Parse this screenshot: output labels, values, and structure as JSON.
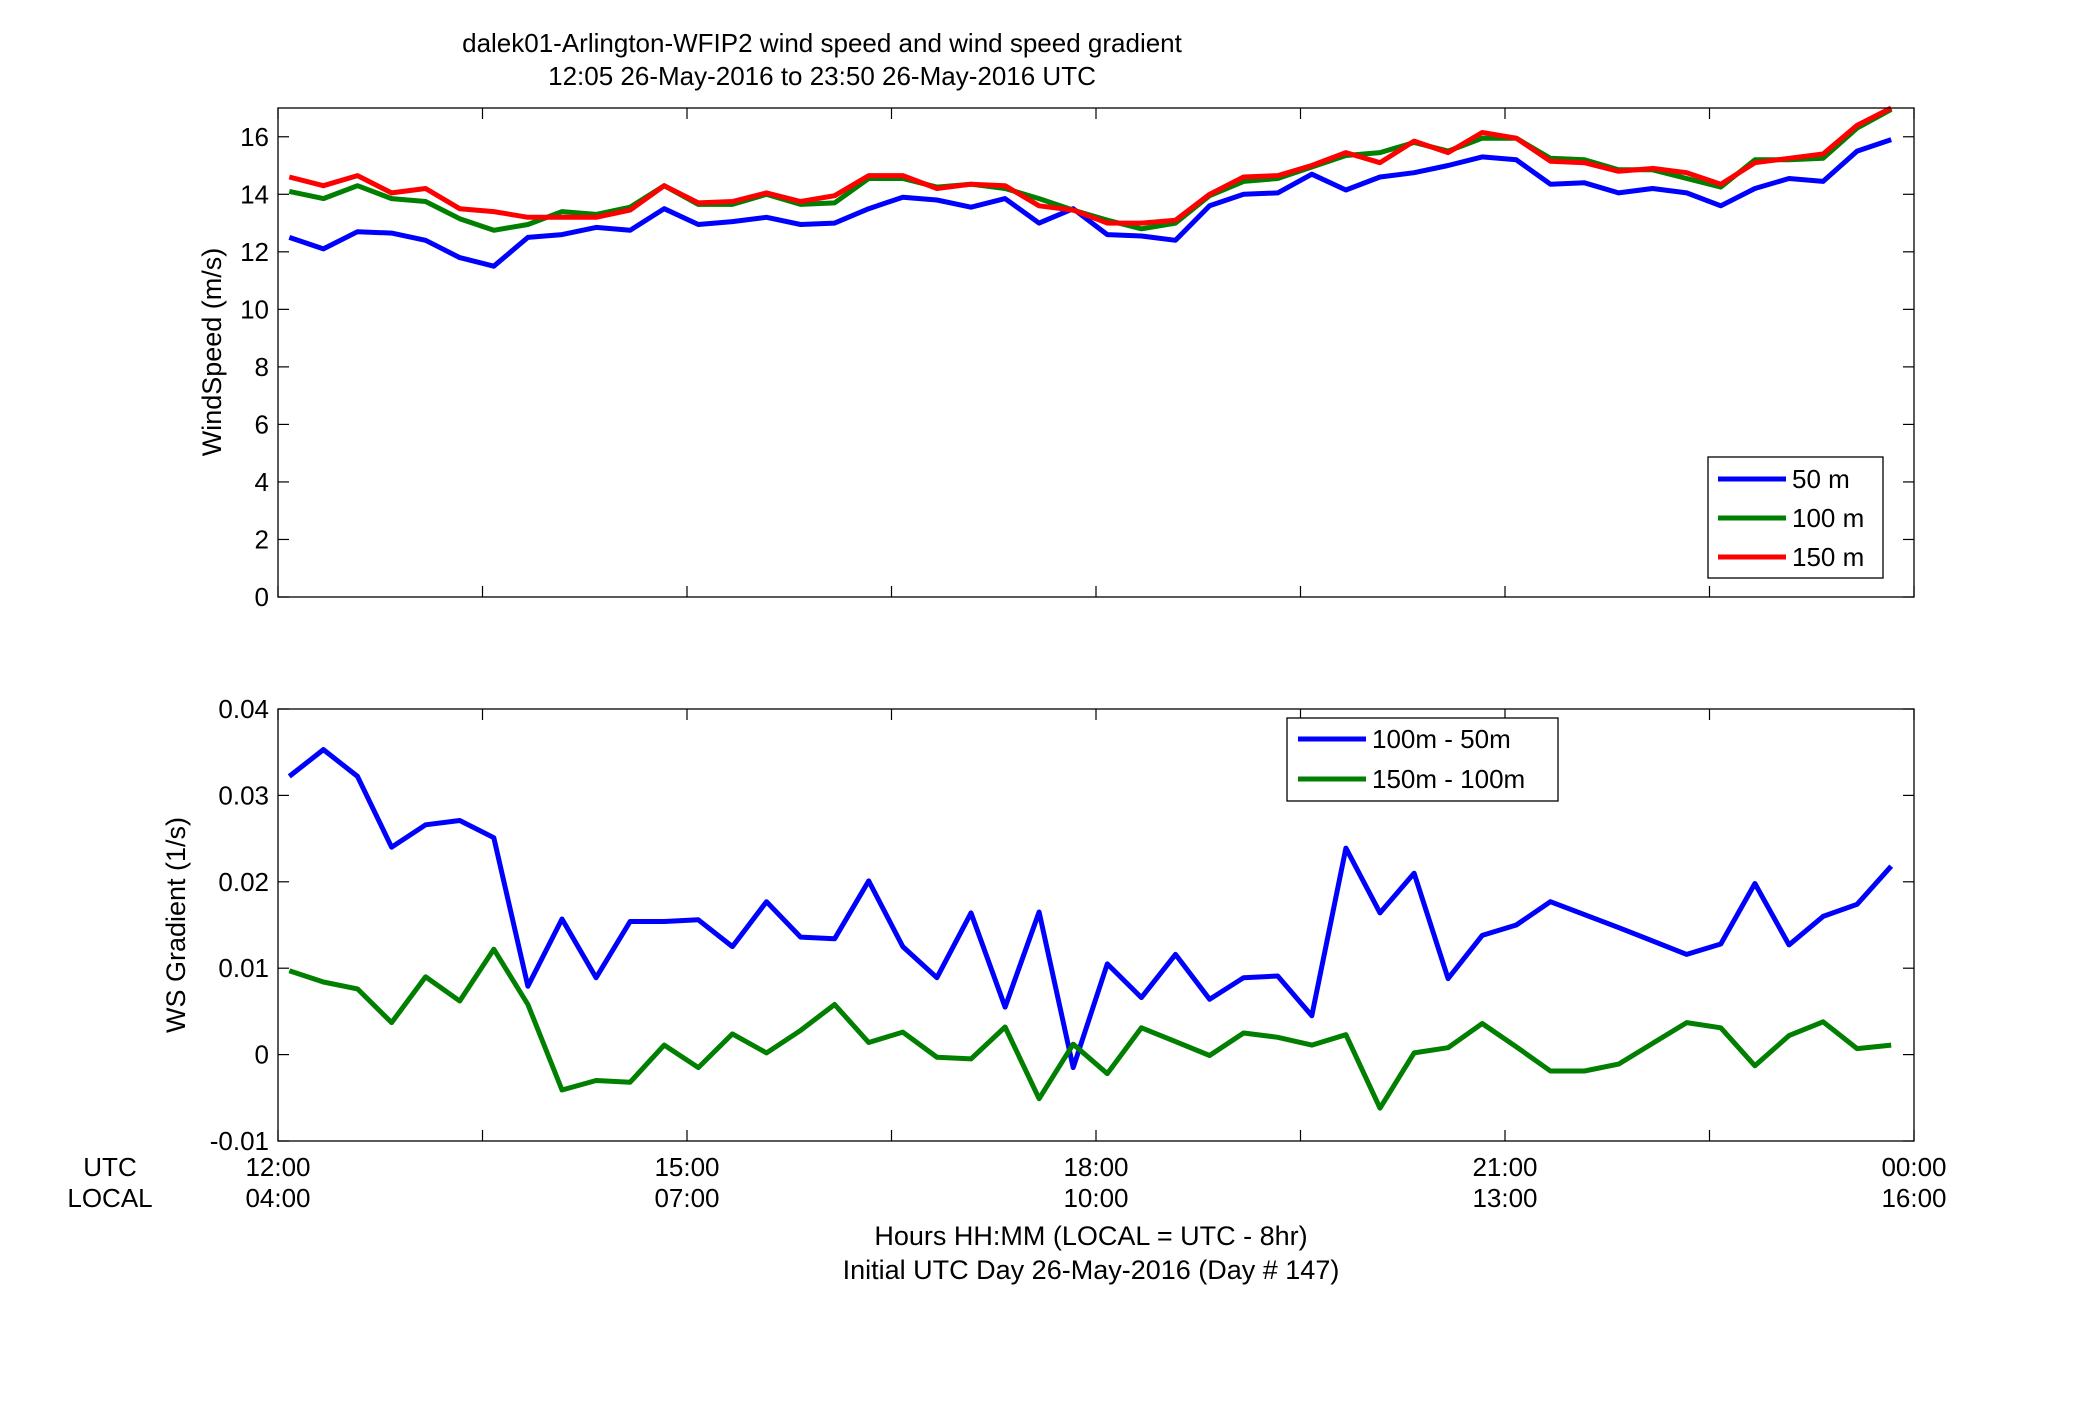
{
  "title_line1": "dalek01-Arlington-WFIP2  wind speed and wind speed gradient",
  "title_line2": "12:05 26-May-2016 to 23:50 26-May-2016  UTC",
  "time_labels": {
    "utc_label": "UTC",
    "local_label": "LOCAL",
    "utc_ticks": [
      "12:00",
      "15:00",
      "18:00",
      "21:00",
      "00:00"
    ],
    "local_ticks": [
      "04:00",
      "07:00",
      "10:00",
      "13:00",
      "16:00"
    ],
    "xlabel_line1": "Hours HH:MM  (LOCAL = UTC - 8hr)",
    "xlabel_line2": "Initial UTC Day 26-May-2016 (Day # 147)"
  },
  "colors": {
    "blue": "#0000ff",
    "green": "#007f00",
    "red": "#ff0000"
  },
  "chart_data": [
    {
      "type": "line",
      "ylabel": "WindSpeed (m/s)",
      "xlim_hours": [
        12,
        24
      ],
      "ylim": [
        0,
        17
      ],
      "yticks": [
        0,
        2,
        4,
        6,
        8,
        10,
        12,
        14,
        16
      ],
      "grid": false,
      "legend_position": "bottom-right",
      "x_hours": [
        12.083,
        12.333,
        12.583,
        12.833,
        13.083,
        13.333,
        13.583,
        13.833,
        14.083,
        14.333,
        14.583,
        14.833,
        15.083,
        15.333,
        15.583,
        15.833,
        16.083,
        16.333,
        16.583,
        16.833,
        17.083,
        17.333,
        17.583,
        17.833,
        18.083,
        18.333,
        18.583,
        18.833,
        19.083,
        19.333,
        19.583,
        19.833,
        20.083,
        20.333,
        20.583,
        20.833,
        21.083,
        21.333,
        21.583,
        21.833,
        22.083,
        22.333,
        22.583,
        22.833,
        23.083,
        23.333,
        23.583,
        23.833
      ],
      "series": [
        {
          "name": "50 m",
          "color": "#0000ff",
          "values": [
            12.5,
            12.1,
            12.7,
            12.65,
            12.4,
            11.8,
            11.5,
            12.5,
            12.6,
            12.85,
            12.75,
            13.5,
            12.95,
            13.05,
            13.2,
            12.95,
            13.0,
            13.5,
            13.9,
            13.8,
            13.55,
            13.85,
            13.0,
            13.5,
            12.6,
            12.55,
            12.4,
            13.6,
            14.0,
            14.05,
            14.7,
            14.15,
            14.6,
            14.75,
            15.0,
            15.3,
            15.2,
            14.35,
            14.4,
            14.05,
            14.2,
            14.05,
            13.6,
            14.2,
            14.55,
            14.45,
            15.5,
            15.9
          ]
        },
        {
          "name": "100 m",
          "color": "#007f00",
          "values": [
            14.1,
            13.85,
            14.3,
            13.85,
            13.75,
            13.15,
            12.75,
            12.95,
            13.4,
            13.3,
            13.55,
            14.3,
            13.65,
            13.65,
            14.0,
            13.65,
            13.7,
            14.55,
            14.55,
            14.25,
            14.35,
            14.2,
            13.85,
            13.45,
            13.1,
            12.8,
            13.0,
            13.95,
            14.45,
            14.55,
            14.95,
            15.35,
            15.45,
            15.8,
            15.5,
            15.95,
            15.95,
            15.25,
            15.2,
            14.85,
            14.85,
            14.55,
            14.25,
            15.2,
            15.2,
            15.25,
            16.3,
            16.95
          ]
        },
        {
          "name": "150 m",
          "color": "#ff0000",
          "values": [
            14.6,
            14.3,
            14.65,
            14.05,
            14.2,
            13.5,
            13.4,
            13.2,
            13.2,
            13.2,
            13.45,
            14.3,
            13.7,
            13.75,
            14.05,
            13.75,
            13.95,
            14.65,
            14.65,
            14.2,
            14.35,
            14.3,
            13.6,
            13.45,
            13.0,
            13.0,
            13.1,
            14.0,
            14.6,
            14.65,
            15.0,
            15.45,
            15.1,
            15.85,
            15.45,
            16.15,
            15.95,
            15.15,
            15.1,
            14.8,
            14.9,
            14.75,
            14.35,
            15.1,
            15.25,
            15.4,
            16.4,
            17.0
          ]
        }
      ]
    },
    {
      "type": "line",
      "ylabel": "WS Gradient (1/s)",
      "xlim_hours": [
        12,
        24
      ],
      "ylim": [
        -0.01,
        0.04
      ],
      "yticks": [
        -0.01,
        0,
        0.01,
        0.02,
        0.03,
        0.04
      ],
      "ytick_labels": [
        "-0.01",
        "0",
        "0.01",
        "0.02",
        "0.03",
        "0.04"
      ],
      "grid": false,
      "legend_position": "top-center-right",
      "series": [
        {
          "name": "100m - 50m",
          "color": "#0000ff",
          "x_hours": [
            12.083,
            12.333,
            12.583,
            12.833,
            13.083,
            13.333,
            13.583,
            13.833,
            14.083,
            14.333,
            14.583,
            14.833,
            15.083,
            15.333,
            15.583,
            15.833,
            16.083,
            16.333,
            16.583,
            16.833,
            17.083,
            17.333,
            17.583,
            17.833,
            18.083,
            18.333,
            18.583,
            18.833,
            19.083,
            19.333,
            19.583,
            19.833,
            20.083,
            20.333,
            20.583,
            20.833,
            21.083,
            21.333,
            21.833,
            22.333,
            22.583,
            22.833,
            23.083,
            23.333,
            23.583,
            23.833
          ],
          "values": [
            0.0322,
            0.0353,
            0.0322,
            0.024,
            0.0266,
            0.0271,
            0.0251,
            0.0079,
            0.0157,
            0.0089,
            0.0154,
            0.0154,
            0.0156,
            0.0125,
            0.0177,
            0.0136,
            0.0134,
            0.0201,
            0.0125,
            0.0089,
            0.0164,
            0.0055,
            0.0165,
            -0.0015,
            0.0105,
            0.0066,
            0.0116,
            0.0064,
            0.0089,
            0.0091,
            0.0045,
            0.0239,
            0.0164,
            0.021,
            0.0088,
            0.0138,
            0.015,
            0.0177,
            0.0147,
            0.0116,
            0.0128,
            0.0198,
            0.0127,
            0.016,
            0.0174,
            0.0218
          ]
        },
        {
          "name": "150m - 100m",
          "color": "#007f00",
          "x_hours": [
            12.083,
            12.333,
            12.583,
            12.833,
            13.083,
            13.333,
            13.583,
            13.833,
            14.083,
            14.333,
            14.583,
            14.833,
            15.083,
            15.333,
            15.583,
            15.833,
            16.083,
            16.333,
            16.583,
            16.833,
            17.083,
            17.333,
            17.583,
            17.833,
            18.083,
            18.333,
            18.583,
            18.833,
            19.083,
            19.333,
            19.583,
            19.833,
            20.083,
            20.333,
            20.583,
            20.833,
            21.083,
            21.333,
            21.583,
            21.833,
            22.333,
            22.583,
            22.833,
            23.083,
            23.333,
            23.583,
            23.833
          ],
          "values": [
            0.0097,
            0.0084,
            0.0076,
            0.0037,
            0.009,
            0.0062,
            0.0122,
            0.0058,
            -0.0041,
            -0.003,
            -0.0032,
            0.0011,
            -0.0015,
            0.0024,
            0.0002,
            0.0028,
            0.0058,
            0.0014,
            0.0026,
            -0.0003,
            -0.0005,
            0.0032,
            -0.0051,
            0.0012,
            -0.0022,
            0.0031,
            0.0015,
            -0.0001,
            0.0025,
            0.002,
            0.0011,
            0.0023,
            -0.0062,
            0.0002,
            0.0008,
            0.0036,
            0.0009,
            -0.0019,
            -0.0019,
            -0.0011,
            0.0037,
            0.0031,
            -0.0013,
            0.0022,
            0.0038,
            0.0007,
            0.0011
          ]
        }
      ]
    }
  ]
}
